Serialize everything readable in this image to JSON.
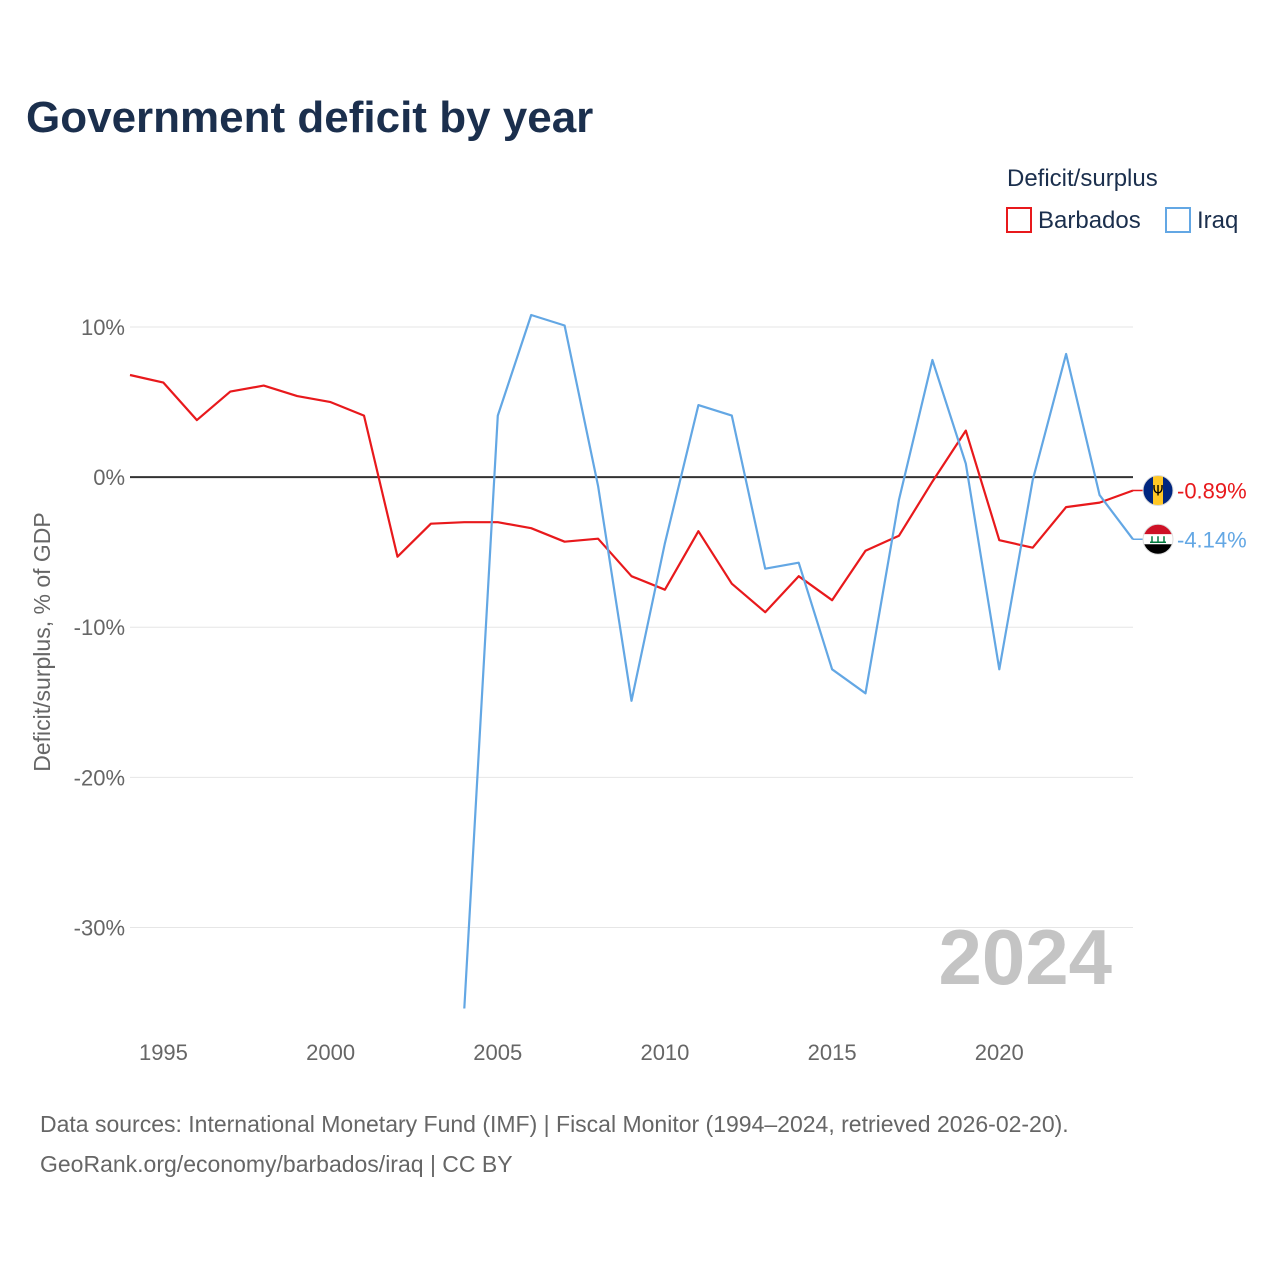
{
  "chart_data": {
    "type": "line",
    "title": "Government deficit by year",
    "ylabel": "Deficit/surplus, % of GDP",
    "xlabel": "",
    "legend_title": "Deficit/surplus",
    "legend_position": "top-right",
    "year_watermark": "2024",
    "xlim": [
      1994,
      2024
    ],
    "ylim": [
      -35.5,
      11
    ],
    "x_ticks": [
      1995,
      2000,
      2005,
      2010,
      2015,
      2020
    ],
    "x_tick_labels": [
      "1995",
      "2000",
      "2005",
      "2010",
      "2015",
      "2020"
    ],
    "y_ticks": [
      10,
      0,
      -10,
      -20,
      -30
    ],
    "y_tick_labels": [
      "10%",
      "0%",
      "-10%",
      "-20%",
      "-30%"
    ],
    "zero_line": true,
    "grid": true,
    "series": [
      {
        "name": "Barbados",
        "color": "#e8191c",
        "end_label": "-0.89%",
        "flag_icon": "barbados-flag-icon",
        "points": [
          [
            1994,
            6.8
          ],
          [
            1995,
            6.3
          ],
          [
            1996,
            3.8
          ],
          [
            1997,
            5.7
          ],
          [
            1998,
            6.1
          ],
          [
            1999,
            5.4
          ],
          [
            2000,
            5.0
          ],
          [
            2001,
            4.1
          ],
          [
            2002,
            -5.3
          ],
          [
            2003,
            -3.1
          ],
          [
            2004,
            -3.0
          ],
          [
            2005,
            -3.0
          ],
          [
            2006,
            -3.4
          ],
          [
            2007,
            -4.3
          ],
          [
            2008,
            -4.1
          ],
          [
            2009,
            -6.6
          ],
          [
            2010,
            -7.5
          ],
          [
            2011,
            -3.6
          ],
          [
            2012,
            -7.1
          ],
          [
            2013,
            -9.0
          ],
          [
            2014,
            -6.6
          ],
          [
            2015,
            -8.2
          ],
          [
            2016,
            -4.9
          ],
          [
            2017,
            -3.9
          ],
          [
            2018,
            -0.3
          ],
          [
            2019,
            3.1
          ],
          [
            2020,
            -4.2
          ],
          [
            2021,
            -4.7
          ],
          [
            2022,
            -2.0
          ],
          [
            2023,
            -1.7
          ],
          [
            2024,
            -0.89
          ]
        ]
      },
      {
        "name": "Iraq",
        "color": "#63a7e4",
        "end_label": "-4.14%",
        "flag_icon": "iraq-flag-icon",
        "points": [
          [
            2004,
            -35.4
          ],
          [
            2005,
            4.1
          ],
          [
            2006,
            10.8
          ],
          [
            2007,
            10.1
          ],
          [
            2008,
            -0.6
          ],
          [
            2009,
            -14.9
          ],
          [
            2010,
            -4.4
          ],
          [
            2011,
            4.8
          ],
          [
            2012,
            4.1
          ],
          [
            2013,
            -6.1
          ],
          [
            2014,
            -5.7
          ],
          [
            2015,
            -12.8
          ],
          [
            2016,
            -14.4
          ],
          [
            2017,
            -1.5
          ],
          [
            2018,
            7.8
          ],
          [
            2019,
            0.9
          ],
          [
            2020,
            -12.8
          ],
          [
            2021,
            -0.2
          ],
          [
            2022,
            8.2
          ],
          [
            2023,
            -1.2
          ],
          [
            2024,
            -4.14
          ]
        ]
      }
    ]
  },
  "footer": {
    "source_line": "Data sources: International Monetary Fund (IMF) | Fiscal Monitor (1994–2024, retrieved 2026-02-20).",
    "credit_line": "GeoRank.org/economy/barbados/iraq | CC BY"
  }
}
